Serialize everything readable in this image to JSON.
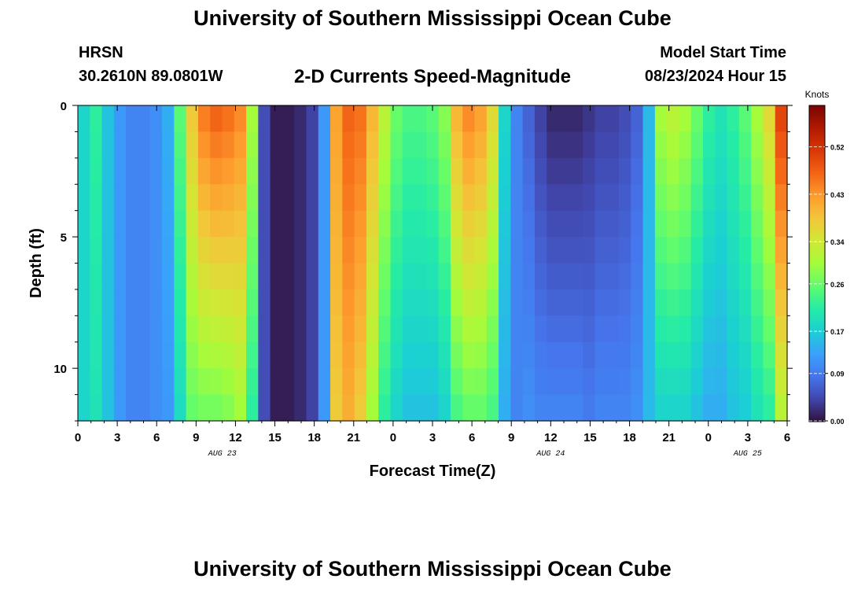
{
  "title": "University of Southern Mississippi Ocean Cube",
  "footer_title": "University of Southern Mississippi Ocean Cube",
  "station": {
    "name": "HRSN",
    "coords": "30.2610N  89.0801W"
  },
  "model": {
    "label": "Model Start Time",
    "start": "08/23/2024 Hour 15"
  },
  "chart_data": {
    "type": "heatmap",
    "title": "2-D Currents Speed-Magnitude",
    "xlabel": "Forecast Time(Z)",
    "ylabel": "Depth (ft)",
    "x_ticks": [
      "0",
      "3",
      "6",
      "9",
      "12",
      "15",
      "18",
      "21",
      "0",
      "3",
      "6",
      "9",
      "12",
      "15",
      "18",
      "21",
      "0",
      "3",
      "6"
    ],
    "x_hours": [
      0,
      54
    ],
    "date_labels": [
      {
        "label": "AUG 23",
        "hour": 11
      },
      {
        "label": "AUG 24",
        "hour": 36
      },
      {
        "label": "AUG 25",
        "hour": 51
      }
    ],
    "y_ticks": [
      "0",
      "5",
      "10"
    ],
    "y_tick_values": [
      0,
      5,
      10
    ],
    "ylim": [
      0,
      12
    ],
    "colorbar": {
      "label": "Knots",
      "range": [
        0,
        0.6
      ],
      "ticks": [
        "0.52",
        "0.43",
        "0.34",
        "0.26",
        "0.17",
        "0.09",
        "0.00"
      ],
      "tick_values": [
        0.52,
        0.43,
        0.34,
        0.26,
        0.17,
        0.09,
        0.0
      ]
    },
    "surface_speed_knots": [
      0.18,
      0.22,
      0.16,
      0.12,
      0.1,
      0.1,
      0.11,
      0.14,
      0.25,
      0.38,
      0.45,
      0.47,
      0.46,
      0.44,
      0.3,
      0.05,
      0.01,
      0.01,
      0.02,
      0.04,
      0.12,
      0.42,
      0.47,
      0.46,
      0.4,
      0.32,
      0.26,
      0.24,
      0.24,
      0.25,
      0.28,
      0.4,
      0.44,
      0.42,
      0.36,
      0.18,
      0.1,
      0.07,
      0.04,
      0.02,
      0.02,
      0.02,
      0.03,
      0.04,
      0.04,
      0.05,
      0.07,
      0.15,
      0.3,
      0.32,
      0.3,
      0.26,
      0.22,
      0.2,
      0.22,
      0.25,
      0.3,
      0.36,
      0.5
    ],
    "depth_offset_knots": [
      0.0,
      -0.02,
      0.0,
      0.0,
      0.0,
      0.0,
      0.0,
      -0.02,
      -0.06,
      -0.12,
      -0.18,
      -0.2,
      -0.18,
      -0.14,
      -0.08,
      0.0,
      0.0,
      0.0,
      0.0,
      0.0,
      0.0,
      -0.04,
      -0.06,
      -0.08,
      -0.1,
      -0.1,
      -0.08,
      -0.08,
      -0.08,
      -0.09,
      -0.1,
      -0.16,
      -0.18,
      -0.16,
      -0.12,
      -0.04,
      0.0,
      0.04,
      0.06,
      0.08,
      0.08,
      0.08,
      0.06,
      0.06,
      0.06,
      0.05,
      0.04,
      0.0,
      -0.12,
      -0.14,
      -0.12,
      -0.1,
      -0.08,
      -0.06,
      -0.06,
      -0.08,
      -0.1,
      -0.14,
      -0.18
    ],
    "color_scale": [
      "#30123b",
      "#4145ab",
      "#4675ed",
      "#39a2fc",
      "#1bcfd4",
      "#24eca6",
      "#61fc6c",
      "#a4fc3b",
      "#d1e834",
      "#f3c63a",
      "#fe9b2d",
      "#f36315",
      "#d93806",
      "#b11901",
      "#7a0402"
    ]
  }
}
